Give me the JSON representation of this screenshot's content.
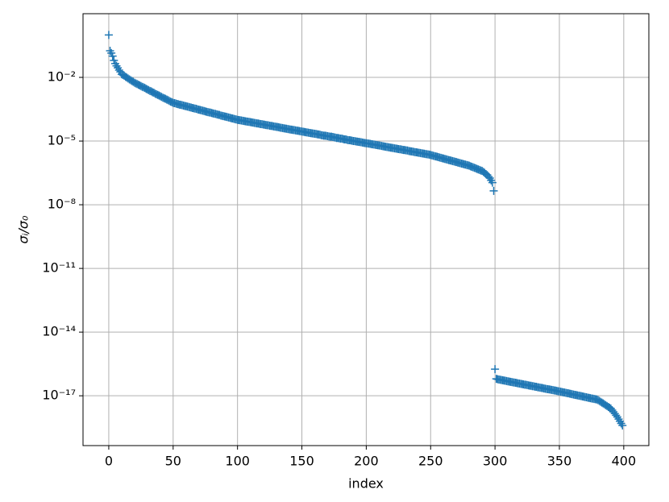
{
  "chart_data": {
    "type": "scatter",
    "marker": "+",
    "color": "#1f77b4",
    "xlabel": "index",
    "ylabel": "σᵢ/σ₀",
    "log_y": true,
    "grid": true,
    "xlim": [
      -20,
      419.5
    ],
    "ylim": [
      4.5e-20,
      10
    ],
    "xticks": [
      0,
      50,
      100,
      150,
      200,
      250,
      300,
      350,
      400
    ],
    "yticks": [
      {
        "value": 0.01,
        "label": "10⁻²"
      },
      {
        "value": 1e-05,
        "label": "10⁻⁵"
      },
      {
        "value": 1e-08,
        "label": "10⁻⁸"
      },
      {
        "value": 1e-11,
        "label": "10⁻¹¹"
      },
      {
        "value": 1e-14,
        "label": "10⁻¹⁴"
      },
      {
        "value": 1e-17,
        "label": "10⁻¹⁷"
      }
    ],
    "x": [
      0,
      1,
      2,
      3,
      4,
      5,
      6,
      7,
      8,
      9,
      10,
      11,
      12,
      13,
      14,
      15,
      16,
      17,
      18,
      19,
      20,
      21,
      22,
      23,
      24,
      25,
      26,
      27,
      28,
      29,
      30,
      31,
      32,
      33,
      34,
      35,
      36,
      37,
      38,
      39,
      40,
      41,
      42,
      43,
      44,
      45,
      46,
      47,
      48,
      49,
      50,
      51,
      52,
      53,
      54,
      55,
      56,
      57,
      58,
      59,
      60,
      61,
      62,
      63,
      64,
      65,
      66,
      67,
      68,
      69,
      70,
      71,
      72,
      73,
      74,
      75,
      76,
      77,
      78,
      79,
      80,
      81,
      82,
      83,
      84,
      85,
      86,
      87,
      88,
      89,
      90,
      91,
      92,
      93,
      94,
      95,
      96,
      97,
      98,
      99,
      100,
      101,
      102,
      103,
      104,
      105,
      106,
      107,
      108,
      109,
      110,
      111,
      112,
      113,
      114,
      115,
      116,
      117,
      118,
      119,
      120,
      121,
      122,
      123,
      124,
      125,
      126,
      127,
      128,
      129,
      130,
      131,
      132,
      133,
      134,
      135,
      136,
      137,
      138,
      139,
      140,
      141,
      142,
      143,
      144,
      145,
      146,
      147,
      148,
      149,
      150,
      151,
      152,
      153,
      154,
      155,
      156,
      157,
      158,
      159,
      160,
      161,
      162,
      163,
      164,
      165,
      166,
      167,
      168,
      169,
      170,
      171,
      172,
      173,
      174,
      175,
      176,
      177,
      178,
      179,
      180,
      181,
      182,
      183,
      184,
      185,
      186,
      187,
      188,
      189,
      190,
      191,
      192,
      193,
      194,
      195,
      196,
      197,
      198,
      199,
      200,
      201,
      202,
      203,
      204,
      205,
      206,
      207,
      208,
      209,
      210,
      211,
      212,
      213,
      214,
      215,
      216,
      217,
      218,
      219,
      220,
      221,
      222,
      223,
      224,
      225,
      226,
      227,
      228,
      229,
      230,
      231,
      232,
      233,
      234,
      235,
      236,
      237,
      238,
      239,
      240,
      241,
      242,
      243,
      244,
      245,
      246,
      247,
      248,
      249,
      250,
      251,
      252,
      253,
      254,
      255,
      256,
      257,
      258,
      259,
      260,
      261,
      262,
      263,
      264,
      265,
      266,
      267,
      268,
      269,
      270,
      271,
      272,
      273,
      274,
      275,
      276,
      277,
      278,
      279,
      280,
      281,
      282,
      283,
      284,
      285,
      286,
      287,
      288,
      289,
      290,
      291,
      292,
      293,
      294,
      295,
      296,
      297,
      298,
      299,
      300,
      301,
      302,
      303,
      304,
      305,
      306,
      307,
      308,
      309,
      310,
      311,
      312,
      313,
      314,
      315,
      316,
      317,
      318,
      319,
      320,
      321,
      322,
      323,
      324,
      325,
      326,
      327,
      328,
      329,
      330,
      331,
      332,
      333,
      334,
      335,
      336,
      337,
      338,
      339,
      340,
      341,
      342,
      343,
      344,
      345,
      346,
      347,
      348,
      349,
      350,
      351,
      352,
      353,
      354,
      355,
      356,
      357,
      358,
      359,
      360,
      361,
      362,
      363,
      364,
      365,
      366,
      367,
      368,
      369,
      370,
      371,
      372,
      373,
      374,
      375,
      376,
      377,
      378,
      379,
      380,
      381,
      382,
      383,
      384,
      385,
      386,
      387,
      388,
      389,
      390,
      391,
      392,
      393,
      394,
      395,
      396,
      397,
      398,
      399
    ],
    "values": [
      1.0,
      0.18,
      0.14,
      0.1,
      0.063,
      0.045,
      0.035,
      0.028,
      0.022,
      0.018,
      0.014,
      0.013,
      0.012,
      0.0107,
      0.0098,
      0.0089,
      0.0081,
      0.0074,
      0.0068,
      0.0062,
      0.0056,
      0.0052,
      0.0049,
      0.0045,
      0.0042,
      0.0039,
      0.0036,
      0.0034,
      0.0032,
      0.0029,
      0.0027,
      0.0025,
      0.0023,
      0.0022,
      0.002,
      0.0019,
      0.0017,
      0.0016,
      0.0015,
      0.0014,
      0.0013,
      0.0012,
      0.0011,
      0.00105,
      0.00098,
      0.00091,
      0.00085,
      0.00078,
      0.00072,
      0.00068,
      0.00063,
      0.00061,
      0.00059,
      0.00056,
      0.00054,
      0.00052,
      0.00051,
      0.00049,
      0.00047,
      0.00045,
      0.00044,
      0.00042,
      0.00041,
      0.00039,
      0.00038,
      0.00036,
      0.00035,
      0.00034,
      0.00033,
      0.00031,
      0.0003,
      0.00029,
      0.00028,
      0.00027,
      0.00026,
      0.00025,
      0.00024,
      0.00023,
      0.000225,
      0.00022,
      0.00021,
      0.0002,
      0.000195,
      0.00019,
      0.00018,
      0.000175,
      0.00017,
      0.00016,
      0.000155,
      0.00015,
      0.000145,
      0.00014,
      0.000135,
      0.00013,
      0.000125,
      0.00012,
      0.000116,
      0.000112,
      0.000108,
      0.000104,
      0.0001,
      9.75e-05,
      9.5e-05,
      9.3e-05,
      9e-05,
      8.8e-05,
      8.6e-05,
      8.4e-05,
      8.2e-05,
      8e-05,
      7.8e-05,
      7.6e-05,
      7.4e-05,
      7.2e-05,
      7e-05,
      6.8e-05,
      6.7e-05,
      6.5e-05,
      6.3e-05,
      6.2e-05,
      6e-05,
      5.9e-05,
      5.7e-05,
      5.6e-05,
      5.5e-05,
      5.3e-05,
      5.2e-05,
      5.1e-05,
      4.9e-05,
      4.8e-05,
      4.7e-05,
      4.6e-05,
      4.5e-05,
      4.3e-05,
      4.2e-05,
      4.1e-05,
      4e-05,
      3.9e-05,
      3.8e-05,
      3.7e-05,
      3.6e-05,
      3.5e-05,
      3.45e-05,
      3.35e-05,
      3.3e-05,
      3.2e-05,
      3.1e-05,
      3.05e-05,
      2.95e-05,
      2.9e-05,
      2.8e-05,
      2.75e-05,
      2.7e-05,
      2.6e-05,
      2.55e-05,
      2.5e-05,
      2.4e-05,
      2.35e-05,
      2.3e-05,
      2.25e-05,
      2.2e-05,
      2.15e-05,
      2.1e-05,
      2.05e-05,
      2e-05,
      1.9e-05,
      1.85e-05,
      1.8e-05,
      1.8e-05,
      1.75e-05,
      1.7e-05,
      1.65e-05,
      1.6e-05,
      1.6e-05,
      1.55e-05,
      1.5e-05,
      1.45e-05,
      1.4e-05,
      1.4e-05,
      1.35e-05,
      1.3e-05,
      1.3e-05,
      1.25e-05,
      1.2e-05,
      1.2e-05,
      1.15e-05,
      1.1e-05,
      1.1e-05,
      1.07e-05,
      1.04e-05,
      1e-05,
      9.9e-06,
      9.6e-06,
      9.4e-06,
      9.2e-06,
      9e-06,
      8.8e-06,
      8.5e-06,
      8.3e-06,
      8.1e-06,
      7.9e-06,
      7.75e-06,
      7.55e-06,
      7.4e-06,
      7.15e-06,
      7e-06,
      6.85e-06,
      6.7e-06,
      6.5e-06,
      6.35e-06,
      6.2e-06,
      6.05e-06,
      5.9e-06,
      5.7e-06,
      5.55e-06,
      5.4e-06,
      5.3e-06,
      5.15e-06,
      5e-06,
      4.9e-06,
      4.8e-06,
      4.7e-06,
      4.55e-06,
      4.45e-06,
      4.35e-06,
      4.2e-06,
      4.1e-06,
      4.05e-06,
      3.9e-06,
      3.8e-06,
      3.75e-06,
      3.65e-06,
      3.6e-06,
      3.4e-06,
      3.35e-06,
      3.25e-06,
      3.2e-06,
      3.1e-06,
      3e-06,
      2.95e-06,
      2.85e-06,
      2.8e-06,
      2.75e-06,
      2.65e-06,
      2.6e-06,
      2.55e-06,
      2.45e-06,
      2.4e-06,
      2.35e-06,
      2.3e-06,
      2.2e-06,
      2.12e-06,
      2.04e-06,
      1.96e-06,
      1.89e-06,
      1.82e-06,
      1.75e-06,
      1.68e-06,
      1.62e-06,
      1.56e-06,
      1.5e-06,
      1.44e-06,
      1.39e-06,
      1.33e-06,
      1.28e-06,
      1.23e-06,
      1.19e-06,
      1.14e-06,
      1.1e-06,
      1.06e-06,
      1.02e-06,
      9.8e-07,
      9.4e-07,
      9.1e-07,
      8.7e-07,
      8.4e-07,
      8.1e-07,
      7.8e-07,
      7.5e-07,
      7.2e-07,
      6.9e-07,
      6.5e-07,
      6.15e-07,
      5.8e-07,
      5.5e-07,
      5.2e-07,
      4.9e-07,
      4.6e-07,
      4.35e-07,
      4.1e-07,
      3.9e-07,
      3.5e-07,
      3.2e-07,
      2.8e-07,
      2.5e-07,
      2.1e-07,
      1.8e-07,
      1.4e-07,
      1.1e-07,
      4.5e-08,
      1.8e-16,
      6.3e-17,
      6e-17,
      5.85e-17,
      5.7e-17,
      5.55e-17,
      5.4e-17,
      5.25e-17,
      5.1e-17,
      4.95e-17,
      4.8e-17,
      4.7e-17,
      4.55e-17,
      4.45e-17,
      4.3e-17,
      4.2e-17,
      4.1e-17,
      4e-17,
      3.85e-17,
      3.75e-17,
      3.65e-17,
      3.55e-17,
      3.45e-17,
      3.35e-17,
      3.3e-17,
      3.2e-17,
      3.1e-17,
      3e-17,
      2.95e-17,
      2.85e-17,
      2.8e-17,
      2.7e-17,
      2.65e-17,
      2.55e-17,
      2.5e-17,
      2.4e-17,
      2.35e-17,
      2.3e-17,
      2.2e-17,
      2.15e-17,
      2.1e-17,
      2.05e-17,
      2e-17,
      1.95e-17,
      1.9e-17,
      1.85e-17,
      1.8e-17,
      1.75e-17,
      1.7e-17,
      1.65e-17,
      1.6e-17,
      1.55e-17,
      1.5e-17,
      1.46e-17,
      1.42e-17,
      1.38e-17,
      1.34e-17,
      1.3e-17,
      1.26e-17,
      1.22e-17,
      1.18e-17,
      1.15e-17,
      1.11e-17,
      1.08e-17,
      1.05e-17,
      1.02e-17,
      9.9e-18,
      9.6e-18,
      9.3e-18,
      9e-18,
      8.7e-18,
      8.5e-18,
      8.2e-18,
      8e-18,
      7.7e-18,
      7.5e-18,
      7.3e-18,
      7.1e-18,
      6.9e-18,
      6.7e-18,
      6.3e-18,
      5.75e-18,
      5.2e-18,
      4.8e-18,
      4.4e-18,
      4e-18,
      3.6e-18,
      3.3e-18,
      3e-18,
      2.75e-18,
      2.5e-18,
      2.1e-18,
      1.75e-18,
      1.45e-18,
      1.2e-18,
      1e-18,
      8e-19,
      6.3e-19,
      5e-19,
      4e-19
    ]
  }
}
